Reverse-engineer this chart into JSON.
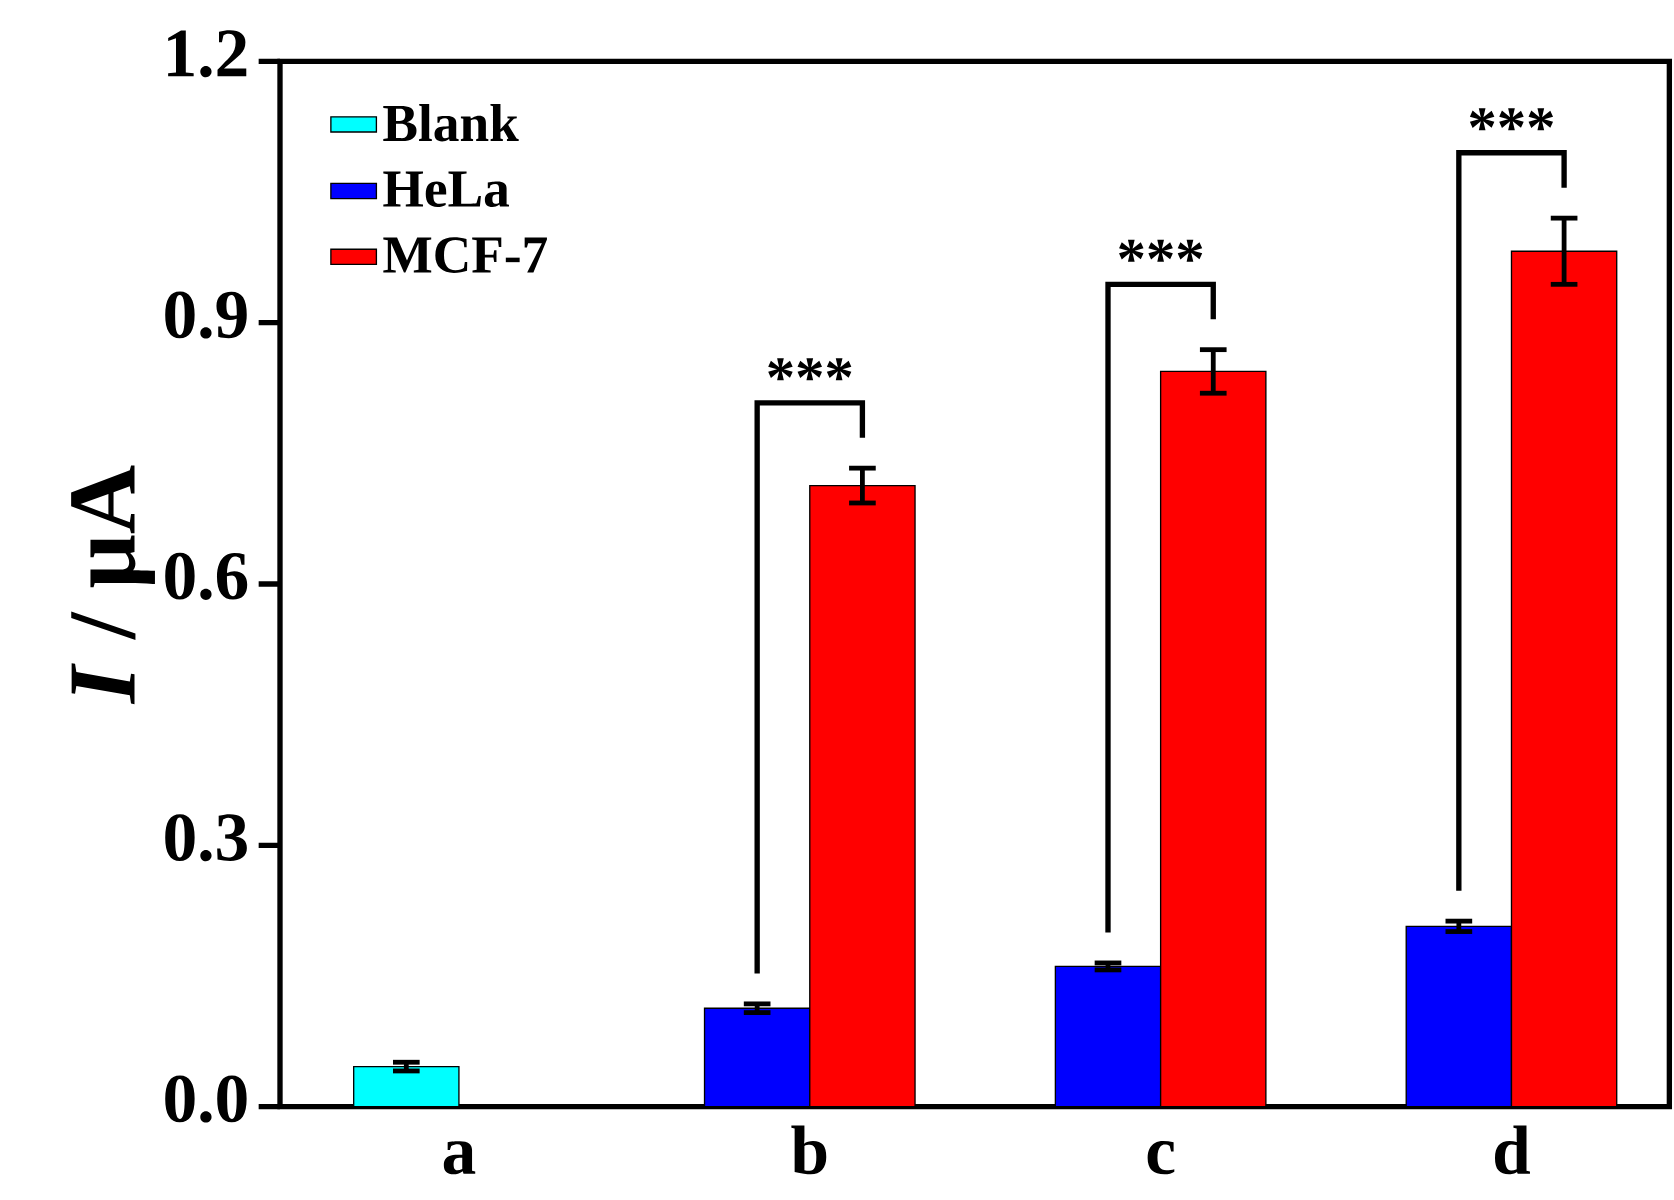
{
  "chart_data": {
    "type": "bar",
    "categories": [
      "a",
      "b",
      "c",
      "d"
    ],
    "ylabel": "*I* / μA",
    "ylim": [
      0,
      1.2
    ],
    "yticks": [
      {
        "value": 0,
        "label": "0.0"
      },
      {
        "value": 0.3,
        "label": "0.3"
      },
      {
        "value": 0.6,
        "label": "0.6"
      },
      {
        "value": 0.9,
        "label": "0.9"
      },
      {
        "value": 1.2,
        "label": "1.2"
      }
    ],
    "legend": "top left",
    "series": [
      {
        "name": "Blank",
        "color": "#00ffff",
        "values": [
          0.046,
          null,
          null,
          null
        ],
        "errors": [
          0.005,
          null,
          null,
          null
        ]
      },
      {
        "name": "HeLa",
        "color": "#0000ff",
        "values": [
          null,
          0.113,
          0.161,
          0.207
        ],
        "errors": [
          null,
          0.005,
          0.004,
          0.006
        ]
      },
      {
        "name": "MCF-7",
        "color": "#ff0000",
        "values": [
          null,
          0.713,
          0.844,
          0.982
        ],
        "errors": [
          null,
          0.02,
          0.025,
          0.038
        ]
      }
    ],
    "annotations": [
      "***",
      "***",
      "***"
    ]
  }
}
